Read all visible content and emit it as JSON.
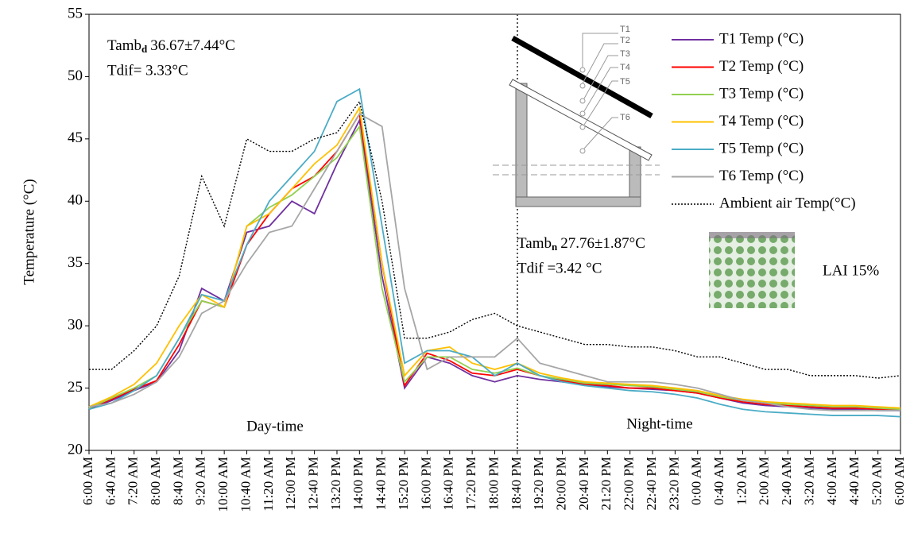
{
  "chart_data": {
    "type": "line",
    "y_label": "Temperature (°C)",
    "categories": [
      "6:00 AM",
      "6:40 AM",
      "7:20 AM",
      "8:00 AM",
      "8:40 AM",
      "9:20 AM",
      "10:00 AM",
      "10:40 AM",
      "11:20 AM",
      "12:00 PM",
      "12:40 PM",
      "13:20 PM",
      "14:00 PM",
      "14:40 PM",
      "15:20 PM",
      "16:00 PM",
      "16:40 PM",
      "17:20 PM",
      "18:00  PM",
      "18:40 PM",
      "19:20 PM",
      "20:00 PM",
      "20:40 PM",
      "21:20 PM",
      "22:00 PM",
      "22:40 PM",
      "23:20 PM",
      "0:00 AM",
      "0:40 AM",
      "1:20 AM",
      "2:00 AM",
      "2:40 AM",
      "3:20 AM",
      "4:00 AM",
      "4:40 AM",
      "5:20 AM",
      "6:00 AM"
    ],
    "ylim": [
      20,
      55
    ],
    "yticks": [
      20,
      25,
      30,
      35,
      40,
      45,
      50,
      55
    ],
    "legend": "top-right",
    "series": [
      {
        "name": "T1 Temp (°C)",
        "color": "#7030a0",
        "values": [
          23.3,
          24,
          24.8,
          25.5,
          28,
          33,
          32,
          37.5,
          38,
          40,
          39,
          43,
          46.5,
          34,
          25,
          27.5,
          27,
          26,
          25.5,
          26,
          25.7,
          25.5,
          25.3,
          25.1,
          25,
          24.9,
          24.8,
          24.6,
          24.2,
          23.8,
          23.6,
          23.5,
          23.4,
          23.3,
          23.3,
          23.2,
          23.2
        ]
      },
      {
        "name": "T2 Temp (°C)",
        "color": "#ff0000",
        "values": [
          23.4,
          24.1,
          24.9,
          25.6,
          28.5,
          32,
          31.5,
          36.5,
          39,
          41,
          42,
          44,
          47,
          35,
          25.2,
          27.8,
          27.2,
          26.2,
          26,
          26.5,
          26,
          25.6,
          25.3,
          25.2,
          25,
          25,
          24.8,
          24.6,
          24.2,
          23.9,
          23.7,
          23.6,
          23.5,
          23.4,
          23.4,
          23.3,
          23.3
        ]
      },
      {
        "name": "T3 Temp (°C)",
        "color": "#92d050",
        "values": [
          23.4,
          24.2,
          25,
          26,
          29,
          32,
          31.5,
          38,
          39.5,
          40.5,
          42,
          43.5,
          46,
          33,
          25.5,
          27.5,
          27.5,
          26.5,
          26.2,
          26.6,
          26,
          25.7,
          25.4,
          25.3,
          25.2,
          25.1,
          24.9,
          24.7,
          24.3,
          24,
          23.8,
          23.7,
          23.6,
          23.5,
          23.5,
          23.4,
          23.3
        ]
      },
      {
        "name": "T4 Temp (°C)",
        "color": "#ffc000",
        "values": [
          23.5,
          24.3,
          25.3,
          27,
          30,
          32.5,
          31.5,
          38,
          39,
          41,
          43,
          44.5,
          47.5,
          35,
          26,
          28,
          28.3,
          27,
          26.5,
          27,
          26.2,
          25.8,
          25.5,
          25.4,
          25.3,
          25.2,
          25,
          24.8,
          24.4,
          24.1,
          23.9,
          23.8,
          23.7,
          23.6,
          23.6,
          23.5,
          23.4
        ]
      },
      {
        "name": "T5 Temp (°C)",
        "color": "#4bacc6",
        "values": [
          23.3,
          23.8,
          24.8,
          26,
          29,
          32.5,
          32,
          36.5,
          40,
          42,
          44,
          48,
          49,
          38,
          27,
          28,
          28,
          27.5,
          26,
          27,
          26,
          25.5,
          25.2,
          25,
          24.8,
          24.7,
          24.5,
          24.2,
          23.7,
          23.3,
          23.1,
          23,
          22.9,
          22.8,
          22.8,
          22.8,
          22.7
        ]
      },
      {
        "name": "T6 Temp (°C)",
        "color": "#a6a6a6",
        "values": [
          23.5,
          23.8,
          24.5,
          25.5,
          27.5,
          31,
          32,
          35,
          37.5,
          38,
          41,
          44,
          47,
          46,
          33,
          26.5,
          27.5,
          27.5,
          27.5,
          29,
          27,
          26.5,
          26,
          25.5,
          25.5,
          25.5,
          25.3,
          25,
          24.5,
          24,
          23.8,
          23.5,
          23.3,
          23.2,
          23.2,
          23.2,
          23.2
        ]
      },
      {
        "name": "Ambient air Temp(°C)",
        "color": "#000000",
        "dash": true,
        "values": [
          26.5,
          26.5,
          28,
          30,
          34,
          42,
          38,
          45,
          44,
          44,
          45,
          45.5,
          48,
          40,
          29,
          29,
          29.5,
          30.5,
          31,
          30,
          29.5,
          29,
          28.5,
          28.5,
          28.3,
          28.3,
          28,
          27.5,
          27.5,
          27,
          26.5,
          26.5,
          26,
          26,
          26,
          25.8,
          26
        ]
      }
    ],
    "annotations": {
      "day_stats": {
        "name": "Tamb",
        "sub": "d",
        "value": "36.67±7.44°C",
        "dif": "Tdif= 3.33°C"
      },
      "night_stats": {
        "name": "Tamb",
        "sub": "n",
        "value": "27.76±1.87°C",
        "dif": "Tdif =3.42 °C"
      },
      "day": "Day-time",
      "night": "Night-time",
      "lai": "LAI 15%",
      "sensors": [
        "T1",
        "T2",
        "T3",
        "T4",
        "T5",
        "T6"
      ]
    }
  }
}
